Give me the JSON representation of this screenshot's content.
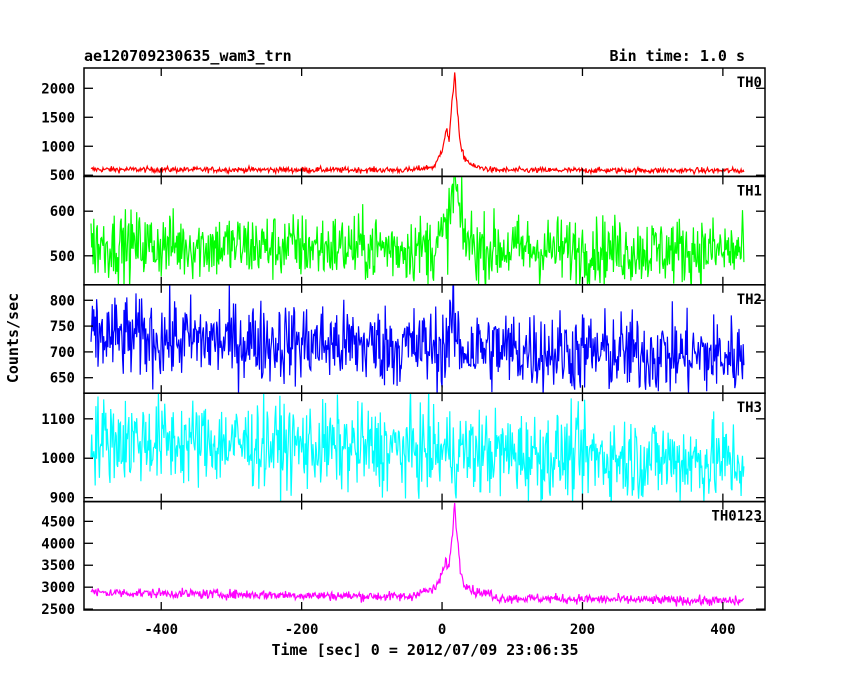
{
  "header": {
    "title": "ae120709230635_wam3_trn",
    "bin_time": "Bin time: 1.0 s"
  },
  "xaxis": {
    "label": "Time [sec] 0 = 2012/07/09 23:06:35",
    "ticks": [
      -400,
      -200,
      0,
      200,
      400
    ]
  },
  "yaxis": {
    "label": "Counts/sec"
  },
  "chart_data": {
    "type": "line",
    "title": "ae120709230635_wam3_trn",
    "subtitle": "Bin time: 1.0 s",
    "xlabel": "Time [sec] 0 = 2012/07/09 23:06:35",
    "ylabel": "Counts/sec",
    "xlim": [
      -510,
      460
    ],
    "x_range": [
      -500,
      430
    ],
    "bin_time_s": 1.0,
    "grid": false,
    "legend": "none",
    "panels": [
      {
        "name": "TH0",
        "color": "#ff0000",
        "ylim": [
          480,
          2350
        ],
        "yticks": [
          500,
          1000,
          1500,
          2000
        ],
        "baseline_start": 600,
        "baseline_end": 580,
        "noise": 25,
        "burst": [
          [
            -40,
            600
          ],
          [
            -10,
            650
          ],
          [
            0,
            950
          ],
          [
            6,
            1300
          ],
          [
            10,
            1100
          ],
          [
            14,
            1700
          ],
          [
            18,
            2300
          ],
          [
            22,
            1600
          ],
          [
            26,
            1000
          ],
          [
            32,
            800
          ],
          [
            45,
            650
          ],
          [
            70,
            600
          ]
        ]
      },
      {
        "name": "TH1",
        "color": "#00ff00",
        "ylim": [
          435,
          678
        ],
        "yticks": [
          500,
          600
        ],
        "baseline_start": 525,
        "baseline_end": 510,
        "noise": 38,
        "burst": [
          [
            -10,
            525
          ],
          [
            0,
            540
          ],
          [
            8,
            560
          ],
          [
            14,
            620
          ],
          [
            18,
            680
          ],
          [
            24,
            600
          ],
          [
            30,
            545
          ],
          [
            45,
            525
          ]
        ]
      },
      {
        "name": "TH2",
        "color": "#0000ff",
        "ylim": [
          620,
          830
        ],
        "yticks": [
          650,
          700,
          750,
          800
        ],
        "baseline_start": 730,
        "baseline_end": 690,
        "noise": 40,
        "burst": [
          [
            5,
            712
          ],
          [
            16,
            760
          ],
          [
            24,
            712
          ]
        ]
      },
      {
        "name": "TH3",
        "color": "#00ffff",
        "ylim": [
          890,
          1165
        ],
        "yticks": [
          900,
          1000,
          1100
        ],
        "baseline_start": 1050,
        "baseline_end": 990,
        "noise": 55,
        "burst": []
      },
      {
        "name": "TH0123",
        "color": "#ff00ff",
        "ylim": [
          2480,
          4950
        ],
        "yticks": [
          2500,
          3000,
          3500,
          4000,
          4500
        ],
        "baseline_start": 2880,
        "baseline_end": 2680,
        "noise": 55,
        "burst": [
          [
            -40,
            2860
          ],
          [
            -10,
            2950
          ],
          [
            0,
            3300
          ],
          [
            6,
            3600
          ],
          [
            10,
            3450
          ],
          [
            14,
            4100
          ],
          [
            18,
            4900
          ],
          [
            22,
            4100
          ],
          [
            26,
            3400
          ],
          [
            32,
            3100
          ],
          [
            45,
            2900
          ],
          [
            70,
            2850
          ]
        ]
      }
    ]
  }
}
